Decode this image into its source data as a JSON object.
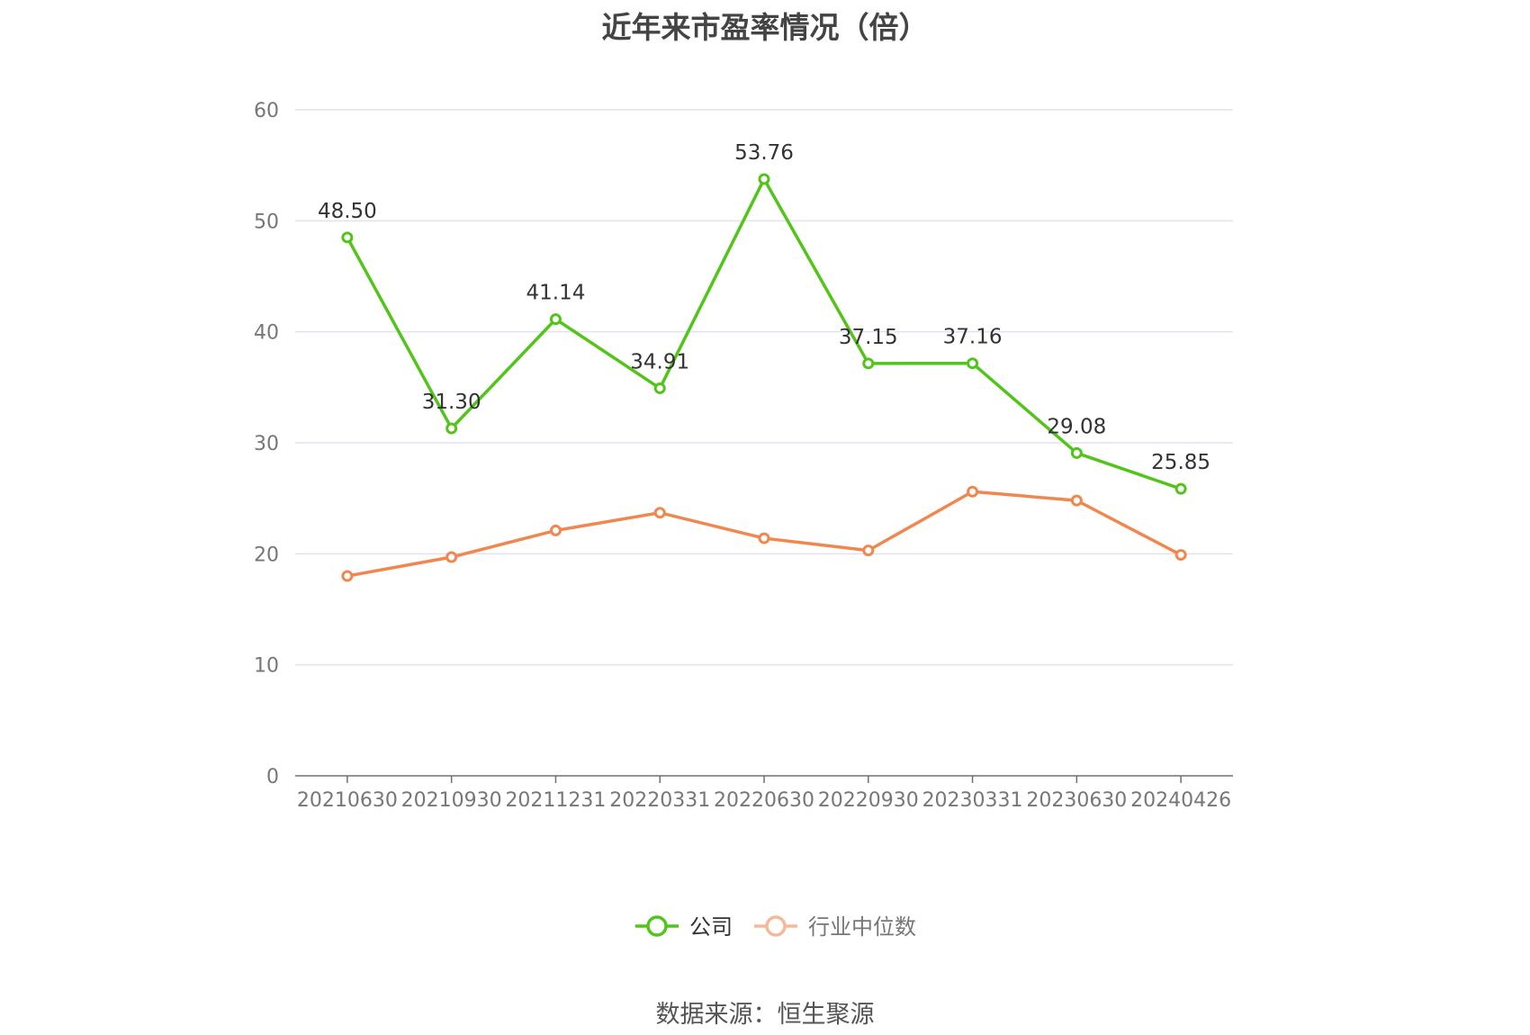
{
  "chart_data": {
    "type": "line",
    "title": "近年来市盈率情况（倍）",
    "categories": [
      "20210630",
      "20210930",
      "20211231",
      "20220331",
      "20220630",
      "20220930",
      "20230331",
      "20230630",
      "20240426"
    ],
    "ylim": [
      0,
      60
    ],
    "yticks": [
      0,
      10,
      20,
      30,
      40,
      50,
      60
    ],
    "grid": true,
    "legend_position": "bottom",
    "series": [
      {
        "name": "公司",
        "color": "#52c41a",
        "values": [
          48.5,
          31.3,
          41.14,
          34.91,
          53.76,
          37.15,
          37.16,
          29.08,
          25.85
        ],
        "labels": [
          "48.50",
          "31.30",
          "41.14",
          "34.91",
          "53.76",
          "37.15",
          "37.16",
          "29.08",
          "25.85"
        ]
      },
      {
        "name": "行业中位数",
        "color": "#f0874f",
        "values": [
          18.0,
          19.7,
          22.1,
          23.7,
          21.4,
          20.3,
          25.6,
          24.8,
          19.9
        ]
      }
    ]
  },
  "source": "数据来源：恒生聚源"
}
